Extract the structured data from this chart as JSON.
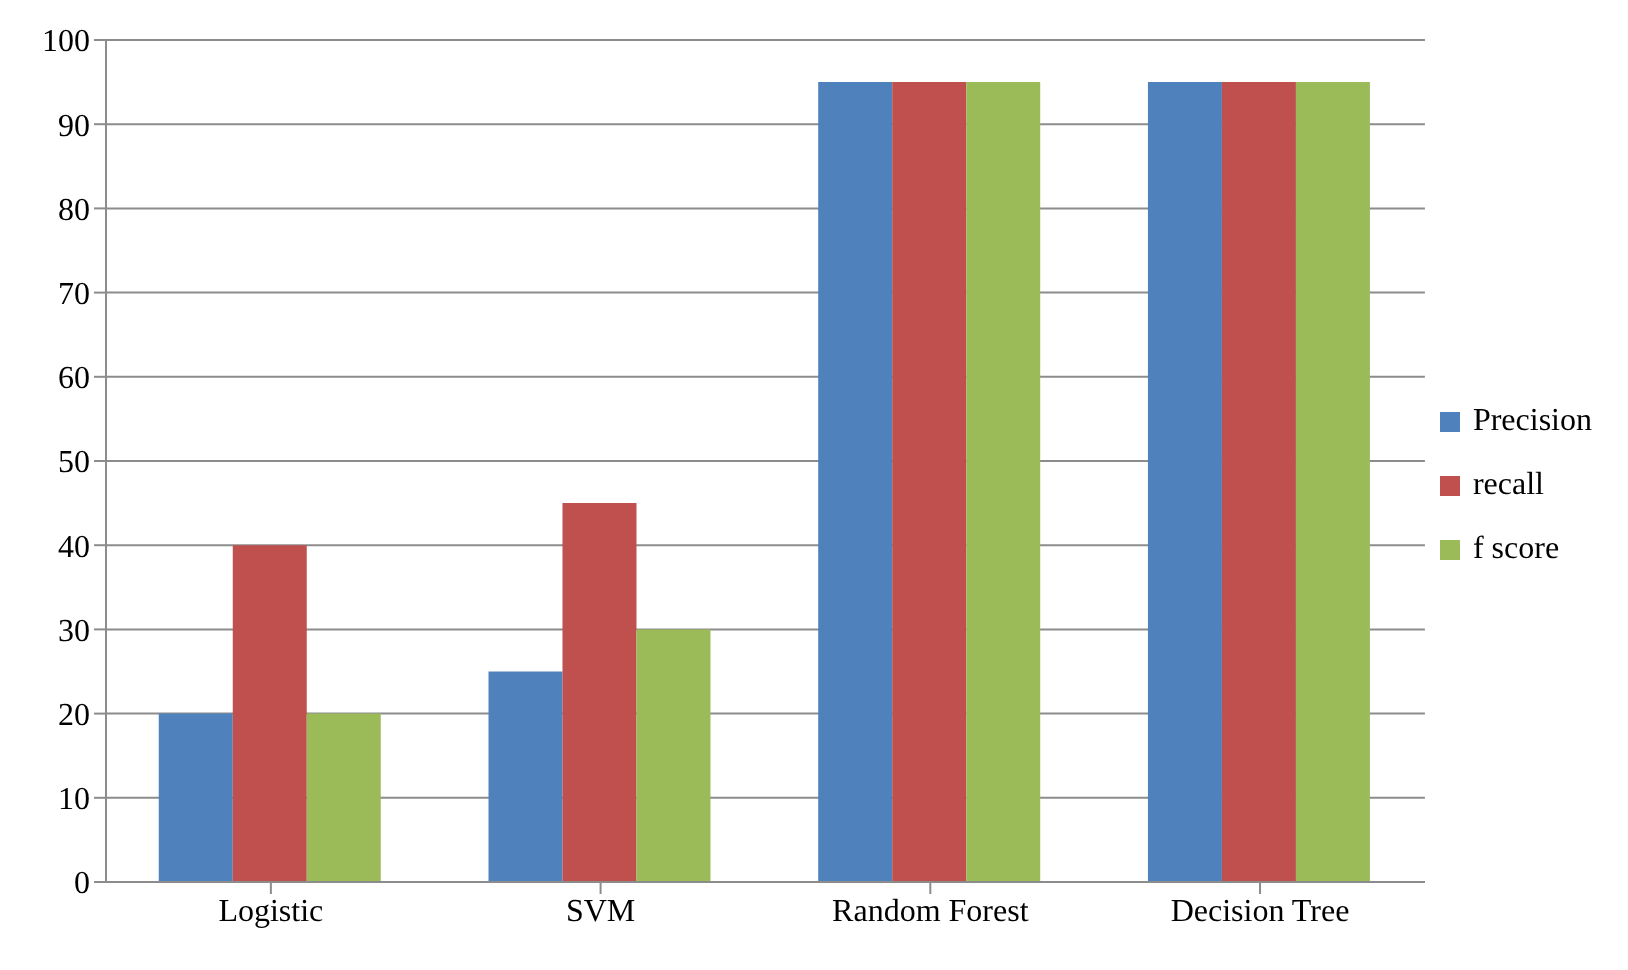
{
  "chart_data": {
    "type": "bar",
    "categories": [
      "Logistic",
      "SVM",
      "Random Forest",
      "Decision Tree"
    ],
    "series": [
      {
        "name": "Precision",
        "color": "#4f81bd",
        "values": [
          20,
          25,
          95,
          95
        ]
      },
      {
        "name": "recall",
        "color": "#c0504d",
        "values": [
          40,
          45,
          95,
          95
        ]
      },
      {
        "name": "f score",
        "color": "#9bbb59",
        "values": [
          20,
          30,
          95,
          95
        ]
      }
    ],
    "ylim": [
      0,
      100
    ],
    "yticks": [
      0,
      10,
      20,
      30,
      40,
      50,
      60,
      70,
      80,
      90,
      100
    ],
    "grid": "y",
    "legend": "right"
  }
}
